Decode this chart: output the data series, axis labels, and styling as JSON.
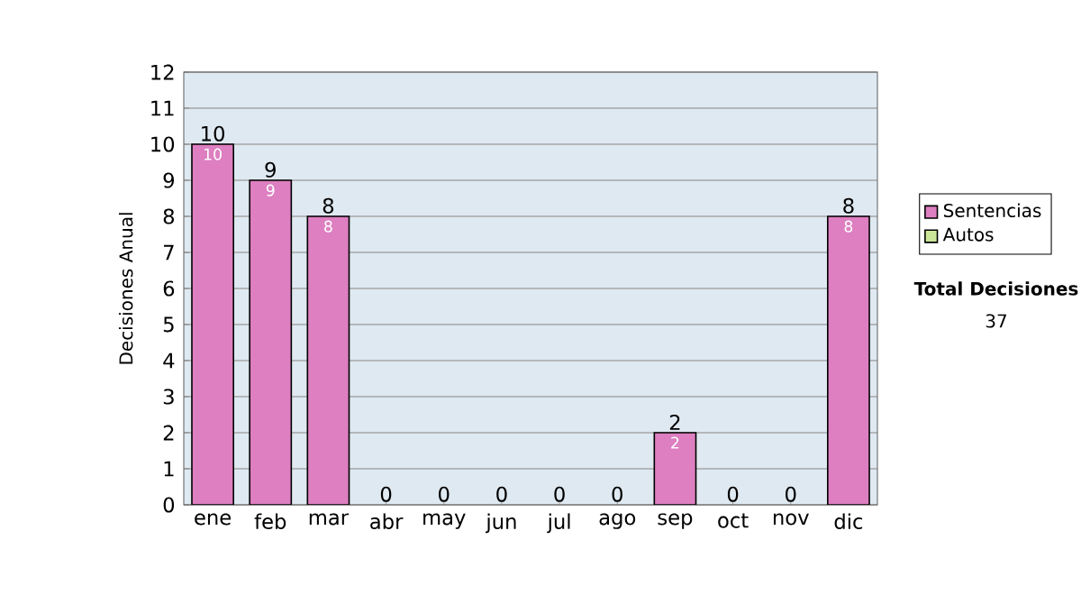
{
  "chart_data": {
    "type": "bar",
    "ylabel": "Decisiones Anual",
    "categories": [
      "ene",
      "feb",
      "mar",
      "abr",
      "may",
      "jun",
      "jul",
      "ago",
      "sep",
      "oct",
      "nov",
      "dic"
    ],
    "series": [
      {
        "name": "Sentencias",
        "color": "#dd7fc0",
        "values": [
          10,
          9,
          8,
          0,
          0,
          0,
          0,
          0,
          2,
          0,
          0,
          8
        ],
        "value_labels": [
          "10",
          "9",
          "8",
          null,
          null,
          null,
          null,
          null,
          "2",
          null,
          null,
          "8"
        ]
      },
      {
        "name": "Autos",
        "color": "#cce699",
        "values": [
          0,
          0,
          0,
          0,
          0,
          0,
          0,
          0,
          0,
          0,
          0,
          0
        ]
      }
    ],
    "stacked": true,
    "totals": [
      "10",
      "9",
      "8",
      "0",
      "0",
      "0",
      "0",
      "0",
      "2",
      "0",
      "0",
      "8"
    ],
    "ylim": [
      0,
      12
    ],
    "yticks": [
      0,
      1,
      2,
      3,
      4,
      5,
      6,
      7,
      8,
      9,
      10,
      11,
      12
    ],
    "grid": "y",
    "legend": "right",
    "annotations": [
      "Total Decisiones",
      "37"
    ]
  }
}
